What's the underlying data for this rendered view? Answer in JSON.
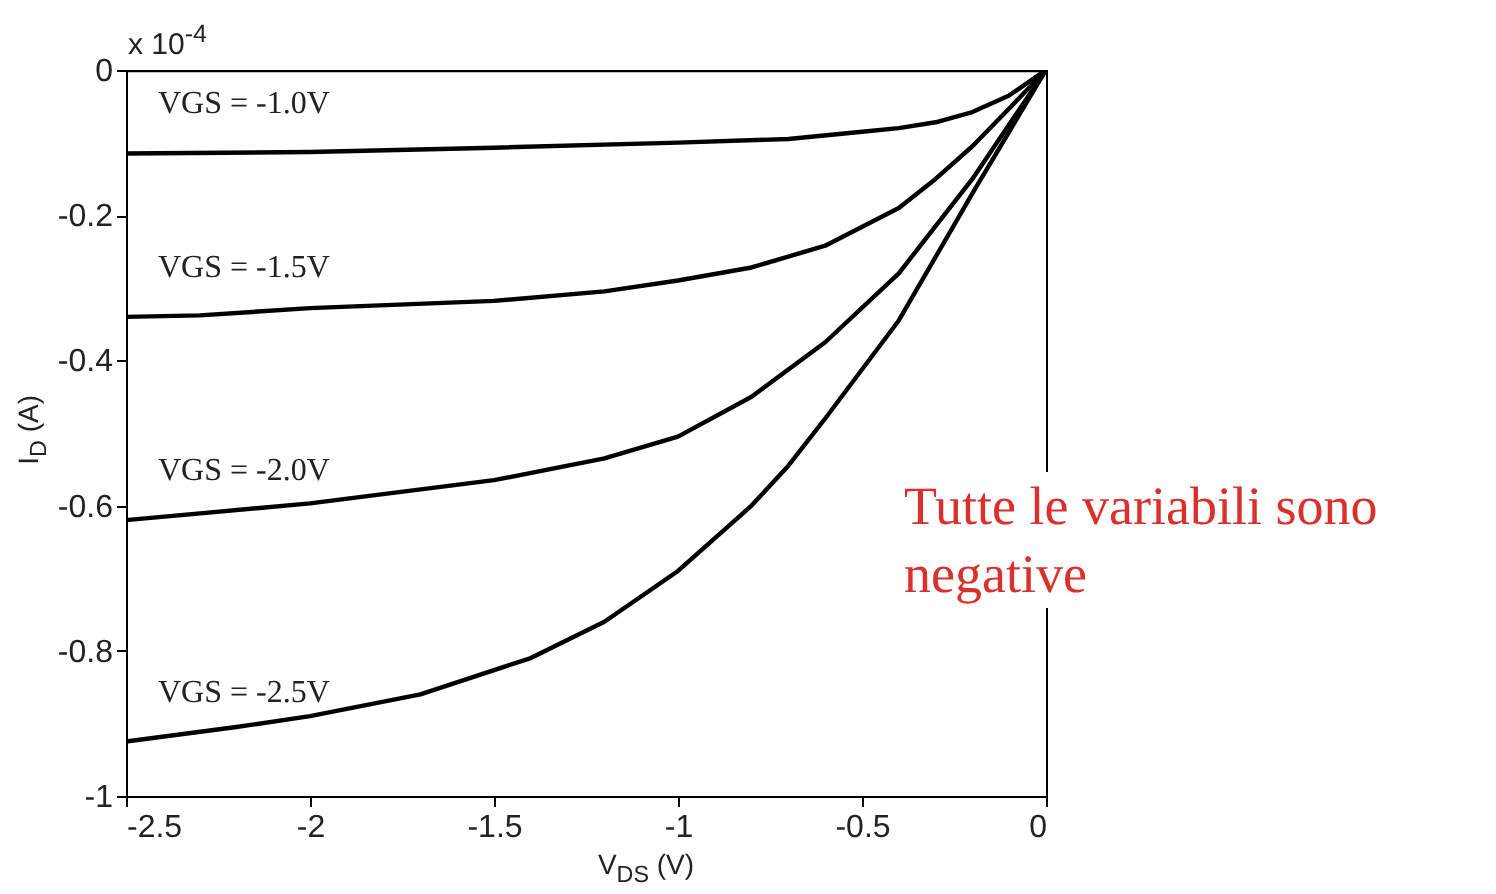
{
  "chart_data": {
    "type": "line",
    "xlabel": "V$_{DS}$ (V)",
    "ylabel": "I$_{D}$ (A)",
    "xlim": [
      -2.5,
      0
    ],
    "xticks": [
      -2.5,
      -2,
      -1.5,
      -1,
      -0.5,
      0
    ],
    "ylim": [
      -1,
      0
    ],
    "yticks": [
      -1,
      -0.8,
      -0.6,
      -0.4,
      -0.2,
      0
    ],
    "annotations": [
      "x 10$^{-4}$",
      "Tutte le variabili sono negative"
    ],
    "series": [
      {
        "color": "#000000",
        "x": [
          -2.5,
          0
        ],
        "values": [
          0,
          0
        ]
      },
      {
        "name": "VGS = -1.0V",
        "color": "#000000",
        "x": [
          -2.5,
          -2,
          -1.5,
          -1,
          -0.7,
          -0.5,
          -0.4,
          -0.3,
          -0.2,
          -0.1,
          0
        ],
        "values": [
          -0.115,
          -0.113,
          -0.107,
          -0.1,
          -0.095,
          -0.085,
          -0.08,
          -0.072,
          -0.058,
          -0.035,
          0
        ]
      },
      {
        "name": "VGS = -1.5V",
        "color": "#000000",
        "x": [
          -2.5,
          -2.3,
          -2,
          -1.5,
          -1.2,
          -1,
          -0.8,
          -0.6,
          -0.4,
          -0.3,
          -0.2,
          -0.1,
          0
        ],
        "values": [
          -0.34,
          -0.338,
          -0.328,
          -0.318,
          -0.305,
          -0.29,
          -0.272,
          -0.242,
          -0.19,
          -0.15,
          -0.105,
          -0.053,
          0
        ]
      },
      {
        "name": "VGS = -2.0V",
        "color": "#000000",
        "x": [
          -2.5,
          -2,
          -1.5,
          -1.2,
          -1,
          -0.8,
          -0.6,
          -0.4,
          -0.2,
          0
        ],
        "values": [
          -0.62,
          -0.597,
          -0.565,
          -0.535,
          -0.505,
          -0.45,
          -0.375,
          -0.28,
          -0.15,
          0
        ]
      },
      {
        "name": "VGS = -2.5V",
        "color": "#000000",
        "x": [
          -2.5,
          -2.2,
          -2,
          -1.7,
          -1.4,
          -1.2,
          -1,
          -0.8,
          -0.7,
          -0.6,
          -0.4,
          -0.2,
          0
        ],
        "values": [
          -0.925,
          -0.905,
          -0.89,
          -0.86,
          -0.81,
          -0.76,
          -0.69,
          -0.6,
          -0.545,
          -0.48,
          -0.345,
          -0.17,
          0
        ]
      }
    ]
  }
}
